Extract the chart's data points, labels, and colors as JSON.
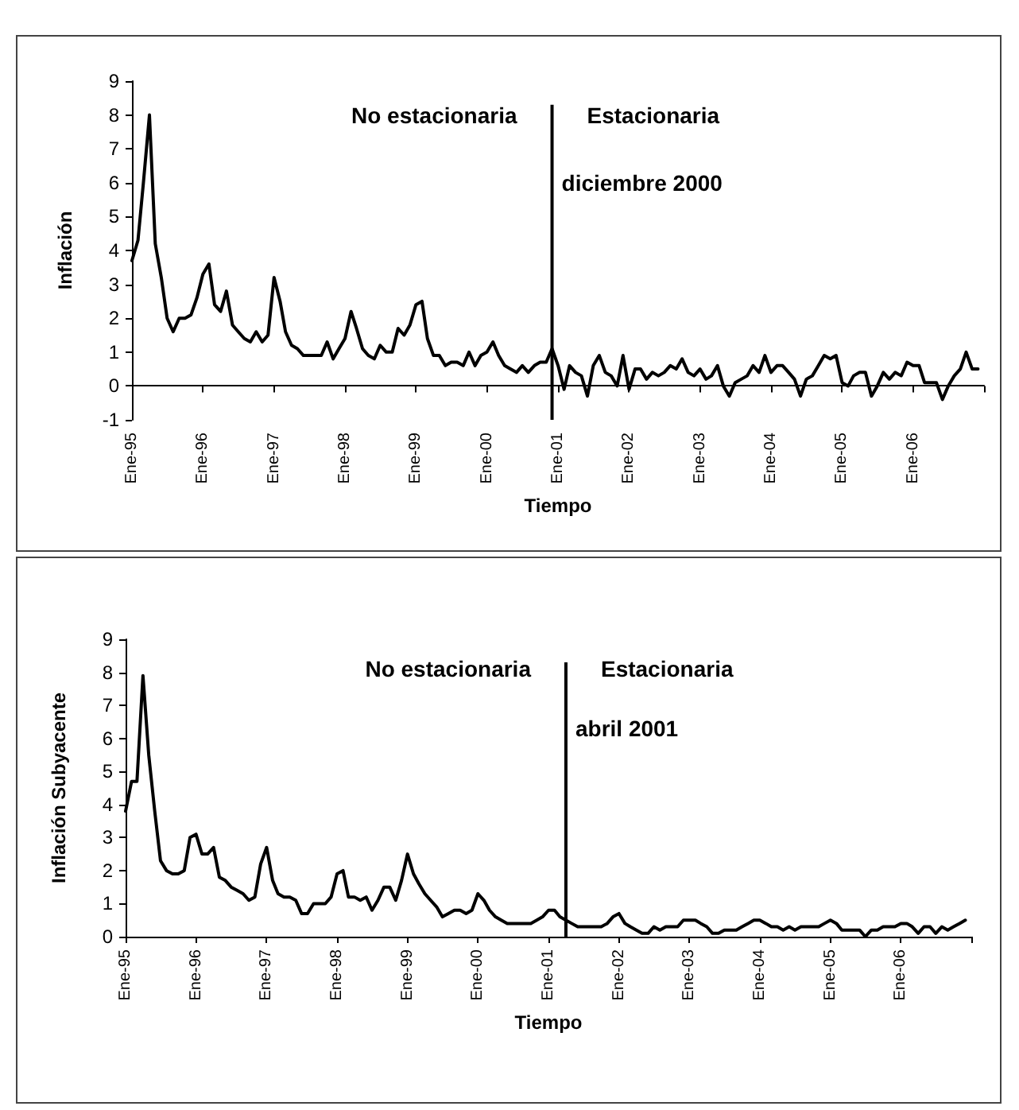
{
  "chart_data": [
    {
      "type": "line",
      "xlabel": "Tiempo",
      "ylabel": "Inflación",
      "x": [
        "1995-01",
        "1995-02",
        "1995-03",
        "1995-04",
        "1995-05",
        "1995-06",
        "1995-07",
        "1995-08",
        "1995-09",
        "1995-10",
        "1995-11",
        "1995-12",
        "1996-01",
        "1996-02",
        "1996-03",
        "1996-04",
        "1996-05",
        "1996-06",
        "1996-07",
        "1996-08",
        "1996-09",
        "1996-10",
        "1996-11",
        "1996-12",
        "1997-01",
        "1997-02",
        "1997-03",
        "1997-04",
        "1997-05",
        "1997-06",
        "1997-07",
        "1997-08",
        "1997-09",
        "1997-10",
        "1997-11",
        "1997-12",
        "1998-01",
        "1998-02",
        "1998-03",
        "1998-04",
        "1998-05",
        "1998-06",
        "1998-07",
        "1998-08",
        "1998-09",
        "1998-10",
        "1998-11",
        "1998-12",
        "1999-01",
        "1999-02",
        "1999-03",
        "1999-04",
        "1999-05",
        "1999-06",
        "1999-07",
        "1999-08",
        "1999-09",
        "1999-10",
        "1999-11",
        "1999-12",
        "2000-01",
        "2000-02",
        "2000-03",
        "2000-04",
        "2000-05",
        "2000-06",
        "2000-07",
        "2000-08",
        "2000-09",
        "2000-10",
        "2000-11",
        "2000-12",
        "2001-01",
        "2001-02",
        "2001-03",
        "2001-04",
        "2001-05",
        "2001-06",
        "2001-07",
        "2001-08",
        "2001-09",
        "2001-10",
        "2001-11",
        "2001-12",
        "2002-01",
        "2002-02",
        "2002-03",
        "2002-04",
        "2002-05",
        "2002-06",
        "2002-07",
        "2002-08",
        "2002-09",
        "2002-10",
        "2002-11",
        "2002-12",
        "2003-01",
        "2003-02",
        "2003-03",
        "2003-04",
        "2003-05",
        "2003-06",
        "2003-07",
        "2003-08",
        "2003-09",
        "2003-10",
        "2003-11",
        "2003-12",
        "2004-01",
        "2004-02",
        "2004-03",
        "2004-04",
        "2004-05",
        "2004-06",
        "2004-07",
        "2004-08",
        "2004-09",
        "2004-10",
        "2004-11",
        "2004-12",
        "2005-01",
        "2005-02",
        "2005-03",
        "2005-04",
        "2005-05",
        "2005-06",
        "2005-07",
        "2005-08",
        "2005-09",
        "2005-10",
        "2005-11",
        "2005-12",
        "2006-01",
        "2006-02",
        "2006-03",
        "2006-04",
        "2006-05",
        "2006-06",
        "2006-07",
        "2006-08",
        "2006-09",
        "2006-10",
        "2006-11",
        "2006-12"
      ],
      "values": [
        3.7,
        4.3,
        6.0,
        8.0,
        4.2,
        3.2,
        2.0,
        1.6,
        2.0,
        2.0,
        2.1,
        2.6,
        3.3,
        3.6,
        2.4,
        2.2,
        2.8,
        1.8,
        1.6,
        1.4,
        1.3,
        1.6,
        1.3,
        1.5,
        3.2,
        2.5,
        1.6,
        1.2,
        1.1,
        0.9,
        0.9,
        0.9,
        0.9,
        1.3,
        0.8,
        1.1,
        1.4,
        2.2,
        1.7,
        1.1,
        0.9,
        0.8,
        1.2,
        1.0,
        1.0,
        1.7,
        1.5,
        1.8,
        2.4,
        2.5,
        1.4,
        0.9,
        0.9,
        0.6,
        0.7,
        0.7,
        0.6,
        1.0,
        0.6,
        0.9,
        1.0,
        1.3,
        0.9,
        0.6,
        0.5,
        0.4,
        0.6,
        0.4,
        0.6,
        0.7,
        0.7,
        1.1,
        0.6,
        -0.1,
        0.6,
        0.4,
        0.3,
        -0.3,
        0.6,
        0.9,
        0.4,
        0.3,
        0.0,
        0.9,
        -0.1,
        0.5,
        0.5,
        0.2,
        0.4,
        0.3,
        0.4,
        0.6,
        0.5,
        0.8,
        0.4,
        0.3,
        0.5,
        0.2,
        0.3,
        0.6,
        0.0,
        -0.3,
        0.1,
        0.2,
        0.3,
        0.6,
        0.4,
        0.9,
        0.4,
        0.6,
        0.6,
        0.4,
        0.2,
        -0.3,
        0.2,
        0.3,
        0.6,
        0.9,
        0.8,
        0.9,
        0.1,
        0.0,
        0.3,
        0.4,
        0.4,
        -0.3,
        0.0,
        0.4,
        0.2,
        0.4,
        0.3,
        0.7,
        0.6,
        0.6,
        0.1,
        0.1,
        0.1,
        -0.4,
        0.0,
        0.3,
        0.5,
        1.0,
        0.5,
        0.5
      ],
      "color": "#000000",
      "marker": "none",
      "line_style": "solid",
      "xlim": [
        "1995-01",
        "2007-01"
      ],
      "xticks": [
        {
          "value": "1995-01",
          "label": "Ene-95"
        },
        {
          "value": "1996-01",
          "label": "Ene-96"
        },
        {
          "value": "1997-01",
          "label": "Ene-97"
        },
        {
          "value": "1998-01",
          "label": "Ene-98"
        },
        {
          "value": "1999-01",
          "label": "Ene-99"
        },
        {
          "value": "2000-01",
          "label": "Ene-00"
        },
        {
          "value": "2001-01",
          "label": "Ene-01"
        },
        {
          "value": "2002-01",
          "label": "Ene-02"
        },
        {
          "value": "2003-01",
          "label": "Ene-03"
        },
        {
          "value": "2004-01",
          "label": "Ene-04"
        },
        {
          "value": "2005-01",
          "label": "Ene-05"
        },
        {
          "value": "2006-01",
          "label": "Ene-06"
        },
        {
          "value": "2007-01",
          "label": null
        }
      ],
      "ylim": [
        -1,
        9
      ],
      "yticks": [
        -1,
        0,
        1,
        2,
        3,
        4,
        5,
        6,
        7,
        8,
        9
      ],
      "ref_lines": [
        {
          "axis": "x",
          "value": "2000-12",
          "label": "diciembre 2000",
          "color": "#000000",
          "line_style": "solid"
        }
      ],
      "annotations": [
        "No estacionaria",
        "Estacionaria"
      ]
    },
    {
      "type": "line",
      "xlabel": "Tiempo",
      "ylabel": "Inflación Subyacente",
      "x": [
        "1995-01",
        "1995-02",
        "1995-03",
        "1995-04",
        "1995-05",
        "1995-06",
        "1995-07",
        "1995-08",
        "1995-09",
        "1995-10",
        "1995-11",
        "1995-12",
        "1996-01",
        "1996-02",
        "1996-03",
        "1996-04",
        "1996-05",
        "1996-06",
        "1996-07",
        "1996-08",
        "1996-09",
        "1996-10",
        "1996-11",
        "1996-12",
        "1997-01",
        "1997-02",
        "1997-03",
        "1997-04",
        "1997-05",
        "1997-06",
        "1997-07",
        "1997-08",
        "1997-09",
        "1997-10",
        "1997-11",
        "1997-12",
        "1998-01",
        "1998-02",
        "1998-03",
        "1998-04",
        "1998-05",
        "1998-06",
        "1998-07",
        "1998-08",
        "1998-09",
        "1998-10",
        "1998-11",
        "1998-12",
        "1999-01",
        "1999-02",
        "1999-03",
        "1999-04",
        "1999-05",
        "1999-06",
        "1999-07",
        "1999-08",
        "1999-09",
        "1999-10",
        "1999-11",
        "1999-12",
        "2000-01",
        "2000-02",
        "2000-03",
        "2000-04",
        "2000-05",
        "2000-06",
        "2000-07",
        "2000-08",
        "2000-09",
        "2000-10",
        "2000-11",
        "2000-12",
        "2001-01",
        "2001-02",
        "2001-03",
        "2001-04",
        "2001-05",
        "2001-06",
        "2001-07",
        "2001-08",
        "2001-09",
        "2001-10",
        "2001-11",
        "2001-12",
        "2002-01",
        "2002-02",
        "2002-03",
        "2002-04",
        "2002-05",
        "2002-06",
        "2002-07",
        "2002-08",
        "2002-09",
        "2002-10",
        "2002-11",
        "2002-12",
        "2003-01",
        "2003-02",
        "2003-03",
        "2003-04",
        "2003-05",
        "2003-06",
        "2003-07",
        "2003-08",
        "2003-09",
        "2003-10",
        "2003-11",
        "2003-12",
        "2004-01",
        "2004-02",
        "2004-03",
        "2004-04",
        "2004-05",
        "2004-06",
        "2004-07",
        "2004-08",
        "2004-09",
        "2004-10",
        "2004-11",
        "2004-12",
        "2005-01",
        "2005-02",
        "2005-03",
        "2005-04",
        "2005-05",
        "2005-06",
        "2005-07",
        "2005-08",
        "2005-09",
        "2005-10",
        "2005-11",
        "2005-12",
        "2006-01",
        "2006-02",
        "2006-03",
        "2006-04",
        "2006-05",
        "2006-06",
        "2006-07",
        "2006-08",
        "2006-09",
        "2006-10",
        "2006-11",
        "2006-12"
      ],
      "values": [
        3.8,
        4.7,
        4.7,
        7.9,
        5.5,
        3.8,
        2.3,
        2.0,
        1.9,
        1.9,
        2.0,
        3.0,
        3.1,
        2.5,
        2.5,
        2.7,
        1.8,
        1.7,
        1.5,
        1.4,
        1.3,
        1.1,
        1.2,
        2.2,
        2.7,
        1.7,
        1.3,
        1.2,
        1.2,
        1.1,
        0.7,
        0.7,
        1.0,
        1.0,
        1.0,
        1.2,
        1.9,
        2.0,
        1.2,
        1.2,
        1.1,
        1.2,
        0.8,
        1.1,
        1.5,
        1.5,
        1.1,
        1.7,
        2.5,
        1.9,
        1.6,
        1.3,
        1.1,
        0.9,
        0.6,
        0.7,
        0.8,
        0.8,
        0.7,
        0.8,
        1.3,
        1.1,
        0.8,
        0.6,
        0.5,
        0.4,
        0.4,
        0.4,
        0.4,
        0.4,
        0.5,
        0.6,
        0.8,
        0.8,
        0.6,
        0.5,
        0.4,
        0.3,
        0.3,
        0.3,
        0.3,
        0.3,
        0.4,
        0.6,
        0.7,
        0.4,
        0.3,
        0.2,
        0.1,
        0.1,
        0.3,
        0.2,
        0.3,
        0.3,
        0.3,
        0.5,
        0.5,
        0.5,
        0.4,
        0.3,
        0.1,
        0.1,
        0.2,
        0.2,
        0.2,
        0.3,
        0.4,
        0.5,
        0.5,
        0.4,
        0.3,
        0.3,
        0.2,
        0.3,
        0.2,
        0.3,
        0.3,
        0.3,
        0.3,
        0.4,
        0.5,
        0.4,
        0.2,
        0.2,
        0.2,
        0.2,
        0.0,
        0.2,
        0.2,
        0.3,
        0.3,
        0.3,
        0.4,
        0.4,
        0.3,
        0.1,
        0.3,
        0.3,
        0.1,
        0.3,
        0.2,
        0.3,
        0.4,
        0.5
      ],
      "color": "#000000",
      "marker": "none",
      "line_style": "solid",
      "xlim": [
        "1995-01",
        "2007-01"
      ],
      "xticks": [
        {
          "value": "1995-01",
          "label": "Ene-95"
        },
        {
          "value": "1996-01",
          "label": "Ene-96"
        },
        {
          "value": "1997-01",
          "label": "Ene-97"
        },
        {
          "value": "1998-01",
          "label": "Ene-98"
        },
        {
          "value": "1999-01",
          "label": "Ene-99"
        },
        {
          "value": "2000-01",
          "label": "Ene-00"
        },
        {
          "value": "2001-01",
          "label": "Ene-01"
        },
        {
          "value": "2002-01",
          "label": "Ene-02"
        },
        {
          "value": "2003-01",
          "label": "Ene-03"
        },
        {
          "value": "2004-01",
          "label": "Ene-04"
        },
        {
          "value": "2005-01",
          "label": "Ene-05"
        },
        {
          "value": "2006-01",
          "label": "Ene-06"
        },
        {
          "value": "2007-01",
          "label": null
        }
      ],
      "ylim": [
        0,
        9
      ],
      "yticks": [
        0,
        1,
        2,
        3,
        4,
        5,
        6,
        7,
        8,
        9
      ],
      "ref_lines": [
        {
          "axis": "x",
          "value": "2001-04",
          "label": "abril 2001",
          "color": "#000000",
          "line_style": "solid"
        }
      ],
      "annotations": [
        "No estacionaria",
        "Estacionaria"
      ]
    }
  ]
}
